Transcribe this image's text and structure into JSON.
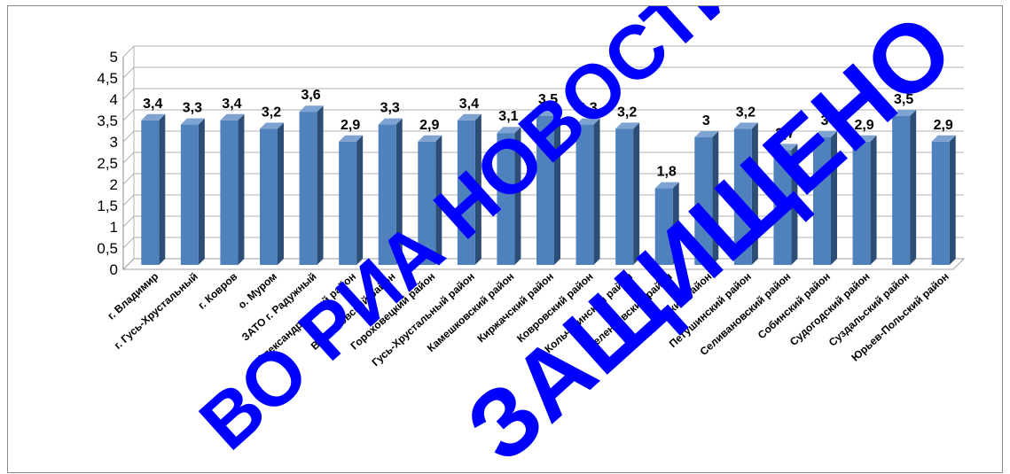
{
  "chart_data": {
    "type": "bar",
    "categories": [
      "г. Владимир",
      "г. Гусь-Хрустальный",
      "г. Ковров",
      "о. Муром",
      "ЗАТО г. Радужный",
      "Александровский район",
      "Вязниковский район",
      "Гороховецкий район",
      "Гусь-Хрустальный район",
      "Камешковский район",
      "Киржачский район",
      "Ковровский район",
      "Кольчугинский район",
      "Меленковский район",
      "Муромский район",
      "Петушинский район",
      "Селивановский район",
      "Собинский район",
      "Судогодский район",
      "Суздальский район",
      "Юрьев-Польский район"
    ],
    "values": [
      3.4,
      3.3,
      3.4,
      3.2,
      3.6,
      2.9,
      3.3,
      2.9,
      3.4,
      3.1,
      3.5,
      3.3,
      3.2,
      1.8,
      3.0,
      3.2,
      2.7,
      3.0,
      2.9,
      3.5,
      2.9
    ],
    "data_labels": [
      "3,4",
      "3,3",
      "3,4",
      "3,2",
      "3,6",
      "2,9",
      "3,3",
      "2,9",
      "3,4",
      "3,1",
      "3,5",
      "3,3",
      "3,2",
      "1,8",
      "3",
      "3,2",
      "2,7",
      "3",
      "2,9",
      "3,5",
      "2,9"
    ],
    "y_ticks": [
      "0",
      "0,5",
      "1",
      "1,5",
      "2",
      "2,5",
      "3",
      "3,5",
      "4",
      "4,5",
      "5"
    ],
    "title": "",
    "xlabel": "",
    "ylabel": "",
    "ylim": [
      0,
      5
    ],
    "grid": true,
    "legend": "none",
    "bar_color": "#4f81bd",
    "bar_side_color": "#2c4d75",
    "bar_top_color": "#7ea3d2"
  },
  "watermark": {
    "line1": "ВО РИА НОВОСТИ",
    "line2": "ЗАЩИЩЕНО",
    "color": "#0000ff"
  }
}
